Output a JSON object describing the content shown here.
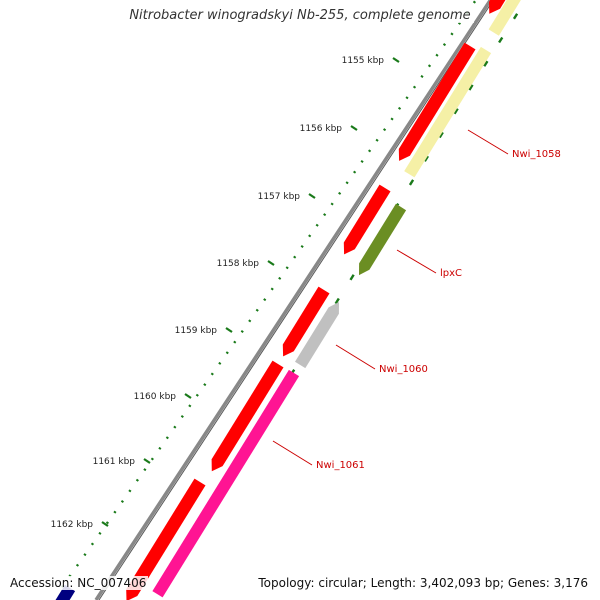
{
  "title": "Nitrobacter winogradskyi Nb-255, complete genome",
  "accession": "Accession: NC_007406",
  "summary": "Topology: circular; Length: 3,402,093 bp; Genes: 3,176",
  "colors": {
    "forward_cds": "#ff0000",
    "nwi_1058": "#f5f0a6",
    "lpxc": "#6b8e23",
    "nwi_1060": "#c0c0c0",
    "nwi_1061": "#ff1493",
    "label": "#cc0000",
    "tick": "#1a7a1a",
    "backbone": "#888888"
  },
  "scale_ticks": [
    {
      "label": "1155 kbp"
    },
    {
      "label": "1156 kbp"
    },
    {
      "label": "1157 kbp"
    },
    {
      "label": "1158 kbp"
    },
    {
      "label": "1159 kbp"
    },
    {
      "label": "1160 kbp"
    },
    {
      "label": "1161 kbp"
    },
    {
      "label": "1162 kbp"
    }
  ],
  "genes": [
    {
      "name": "Nwi_1058",
      "color": "#f5f0a6"
    },
    {
      "name": "lpxC",
      "color": "#6b8e23"
    },
    {
      "name": "Nwi_1060",
      "color": "#c0c0c0"
    },
    {
      "name": "Nwi_1061",
      "color": "#ff1493"
    }
  ]
}
